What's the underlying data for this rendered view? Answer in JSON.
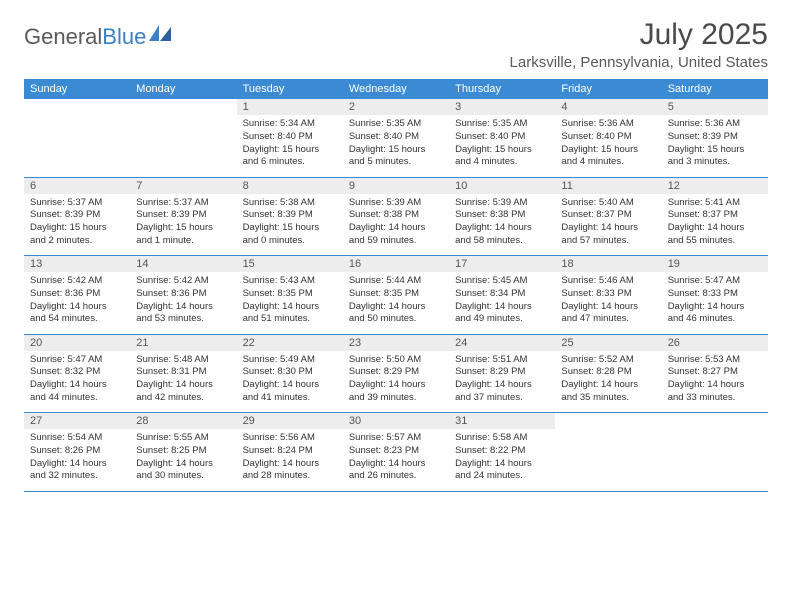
{
  "logo": {
    "text1": "General",
    "text2": "Blue"
  },
  "title": "July 2025",
  "location": "Larksville, Pennsylvania, United States",
  "colors": {
    "header_bg": "#3b8bd4",
    "header_fg": "#ffffff",
    "daynum_bg": "#ededed",
    "border": "#3b8bd4",
    "logo_gray": "#5a5a5a",
    "logo_blue": "#3b7fc4"
  },
  "day_headers": [
    "Sunday",
    "Monday",
    "Tuesday",
    "Wednesday",
    "Thursday",
    "Friday",
    "Saturday"
  ],
  "weeks": [
    {
      "nums": [
        "",
        "",
        "1",
        "2",
        "3",
        "4",
        "5"
      ],
      "cells": [
        "",
        "",
        "Sunrise: 5:34 AM\nSunset: 8:40 PM\nDaylight: 15 hours and 6 minutes.",
        "Sunrise: 5:35 AM\nSunset: 8:40 PM\nDaylight: 15 hours and 5 minutes.",
        "Sunrise: 5:35 AM\nSunset: 8:40 PM\nDaylight: 15 hours and 4 minutes.",
        "Sunrise: 5:36 AM\nSunset: 8:40 PM\nDaylight: 15 hours and 4 minutes.",
        "Sunrise: 5:36 AM\nSunset: 8:39 PM\nDaylight: 15 hours and 3 minutes."
      ]
    },
    {
      "nums": [
        "6",
        "7",
        "8",
        "9",
        "10",
        "11",
        "12"
      ],
      "cells": [
        "Sunrise: 5:37 AM\nSunset: 8:39 PM\nDaylight: 15 hours and 2 minutes.",
        "Sunrise: 5:37 AM\nSunset: 8:39 PM\nDaylight: 15 hours and 1 minute.",
        "Sunrise: 5:38 AM\nSunset: 8:39 PM\nDaylight: 15 hours and 0 minutes.",
        "Sunrise: 5:39 AM\nSunset: 8:38 PM\nDaylight: 14 hours and 59 minutes.",
        "Sunrise: 5:39 AM\nSunset: 8:38 PM\nDaylight: 14 hours and 58 minutes.",
        "Sunrise: 5:40 AM\nSunset: 8:37 PM\nDaylight: 14 hours and 57 minutes.",
        "Sunrise: 5:41 AM\nSunset: 8:37 PM\nDaylight: 14 hours and 55 minutes."
      ]
    },
    {
      "nums": [
        "13",
        "14",
        "15",
        "16",
        "17",
        "18",
        "19"
      ],
      "cells": [
        "Sunrise: 5:42 AM\nSunset: 8:36 PM\nDaylight: 14 hours and 54 minutes.",
        "Sunrise: 5:42 AM\nSunset: 8:36 PM\nDaylight: 14 hours and 53 minutes.",
        "Sunrise: 5:43 AM\nSunset: 8:35 PM\nDaylight: 14 hours and 51 minutes.",
        "Sunrise: 5:44 AM\nSunset: 8:35 PM\nDaylight: 14 hours and 50 minutes.",
        "Sunrise: 5:45 AM\nSunset: 8:34 PM\nDaylight: 14 hours and 49 minutes.",
        "Sunrise: 5:46 AM\nSunset: 8:33 PM\nDaylight: 14 hours and 47 minutes.",
        "Sunrise: 5:47 AM\nSunset: 8:33 PM\nDaylight: 14 hours and 46 minutes."
      ]
    },
    {
      "nums": [
        "20",
        "21",
        "22",
        "23",
        "24",
        "25",
        "26"
      ],
      "cells": [
        "Sunrise: 5:47 AM\nSunset: 8:32 PM\nDaylight: 14 hours and 44 minutes.",
        "Sunrise: 5:48 AM\nSunset: 8:31 PM\nDaylight: 14 hours and 42 minutes.",
        "Sunrise: 5:49 AM\nSunset: 8:30 PM\nDaylight: 14 hours and 41 minutes.",
        "Sunrise: 5:50 AM\nSunset: 8:29 PM\nDaylight: 14 hours and 39 minutes.",
        "Sunrise: 5:51 AM\nSunset: 8:29 PM\nDaylight: 14 hours and 37 minutes.",
        "Sunrise: 5:52 AM\nSunset: 8:28 PM\nDaylight: 14 hours and 35 minutes.",
        "Sunrise: 5:53 AM\nSunset: 8:27 PM\nDaylight: 14 hours and 33 minutes."
      ]
    },
    {
      "nums": [
        "27",
        "28",
        "29",
        "30",
        "31",
        "",
        ""
      ],
      "cells": [
        "Sunrise: 5:54 AM\nSunset: 8:26 PM\nDaylight: 14 hours and 32 minutes.",
        "Sunrise: 5:55 AM\nSunset: 8:25 PM\nDaylight: 14 hours and 30 minutes.",
        "Sunrise: 5:56 AM\nSunset: 8:24 PM\nDaylight: 14 hours and 28 minutes.",
        "Sunrise: 5:57 AM\nSunset: 8:23 PM\nDaylight: 14 hours and 26 minutes.",
        "Sunrise: 5:58 AM\nSunset: 8:22 PM\nDaylight: 14 hours and 24 minutes.",
        "",
        ""
      ]
    }
  ]
}
